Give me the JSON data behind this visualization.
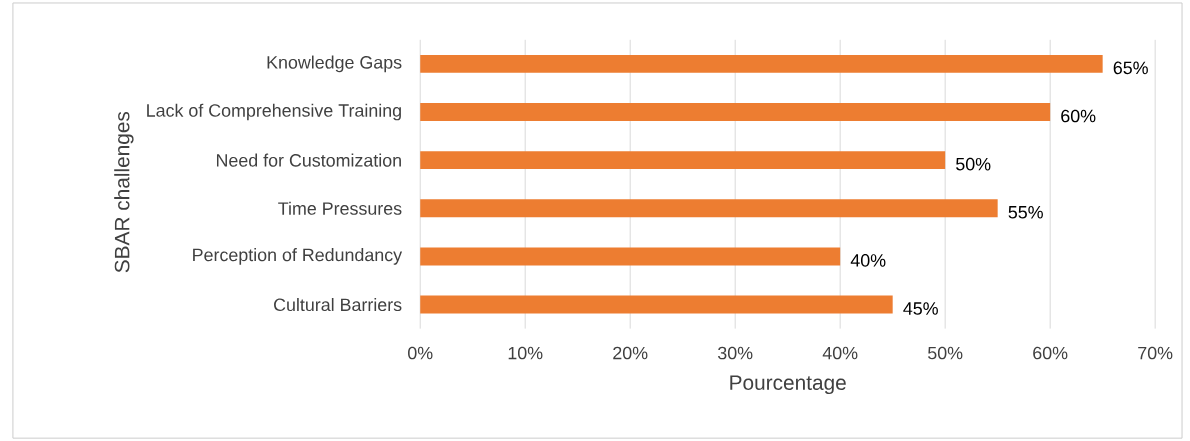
{
  "chart_data": {
    "type": "bar",
    "orientation": "horizontal",
    "categories": [
      "Knowledge Gaps",
      "Lack of Comprehensive Training",
      "Need for Customization",
      "Time Pressures",
      "Perception of Redundancy",
      "Cultural Barriers"
    ],
    "values": [
      65,
      60,
      50,
      55,
      40,
      45
    ],
    "value_labels": [
      "65%",
      "60%",
      "50%",
      "55%",
      "40%",
      "45%"
    ],
    "color": "#ed7d31",
    "xlabel": "Pourcentage",
    "ylabel": "SBAR challenges",
    "xlim": [
      0,
      70
    ],
    "xticks": [
      {
        "value": 0,
        "label": "0%"
      },
      {
        "value": 10,
        "label": "10%"
      },
      {
        "value": 20,
        "label": "20%"
      },
      {
        "value": 30,
        "label": "30%"
      },
      {
        "value": 40,
        "label": "40%"
      },
      {
        "value": 50,
        "label": "50%"
      },
      {
        "value": 60,
        "label": "60%"
      },
      {
        "value": 70,
        "label": "70%"
      }
    ],
    "grid": "x"
  }
}
